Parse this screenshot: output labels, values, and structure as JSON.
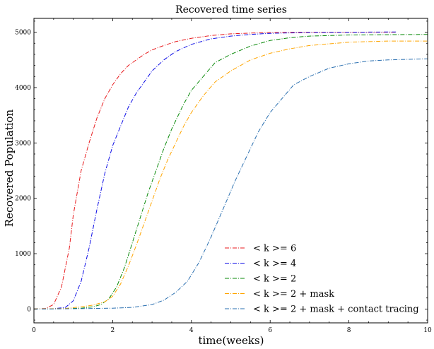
{
  "chart_data": {
    "type": "line",
    "title": "Recovered time series",
    "xlabel": "time(weeks)",
    "ylabel": "Recovered Population",
    "xlim": [
      0,
      10
    ],
    "ylim": [
      -250,
      5250
    ],
    "xticks": [
      0,
      2,
      4,
      6,
      8,
      10
    ],
    "yticks": [
      0,
      1000,
      2000,
      3000,
      4000,
      5000
    ],
    "xtick_labels": [
      "0",
      "2",
      "4",
      "6",
      "8",
      "10"
    ],
    "ytick_labels": [
      "0",
      "1000",
      "2000",
      "3000",
      "4000",
      "5000"
    ],
    "grid": false,
    "legend_position": "lower-right",
    "series": [
      {
        "name": "< k >= 6",
        "color": "#e8191c",
        "x": [
          0,
          0.3,
          0.5,
          0.7,
          0.9,
          1.0,
          1.2,
          1.4,
          1.6,
          1.8,
          2.0,
          2.2,
          2.4,
          2.6,
          2.8,
          3.0,
          3.3,
          3.6,
          4.0,
          4.5,
          5.0,
          5.5,
          6.0,
          7.0,
          8.0,
          9.2
        ],
        "y": [
          0,
          10,
          80,
          400,
          1100,
          1700,
          2500,
          3000,
          3450,
          3800,
          4050,
          4250,
          4400,
          4500,
          4600,
          4680,
          4760,
          4830,
          4890,
          4940,
          4970,
          4985,
          4995,
          5000,
          5000,
          5000
        ]
      },
      {
        "name": "< k >= 4",
        "color": "#0c0ce6",
        "x": [
          0,
          0.5,
          0.8,
          1.0,
          1.2,
          1.4,
          1.6,
          1.8,
          2.0,
          2.2,
          2.4,
          2.6,
          2.8,
          3.0,
          3.3,
          3.6,
          4.0,
          4.5,
          5.0,
          5.5,
          6.0,
          7.0,
          8.0,
          9.2
        ],
        "y": [
          0,
          5,
          30,
          150,
          500,
          1100,
          1800,
          2450,
          2950,
          3300,
          3650,
          3900,
          4100,
          4300,
          4500,
          4650,
          4780,
          4880,
          4930,
          4960,
          4980,
          4995,
          5000,
          5005
        ]
      },
      {
        "name": "< k >= 2",
        "color": "#0a8a0a",
        "x": [
          0,
          0.8,
          1.2,
          1.5,
          1.7,
          1.9,
          2.1,
          2.3,
          2.5,
          2.7,
          2.9,
          3.1,
          3.3,
          3.5,
          3.8,
          4.0,
          4.3,
          4.6,
          5.0,
          5.5,
          6.0,
          6.5,
          7.0,
          8.0,
          9.0,
          10.0
        ],
        "y": [
          0,
          5,
          15,
          40,
          80,
          180,
          400,
          750,
          1200,
          1650,
          2100,
          2500,
          2900,
          3250,
          3700,
          3950,
          4200,
          4450,
          4600,
          4750,
          4850,
          4900,
          4930,
          4950,
          4955,
          4960
        ]
      },
      {
        "name": "< k >= 2 + mask",
        "color": "#ffa500",
        "x": [
          0,
          0.8,
          1.2,
          1.5,
          1.8,
          2.0,
          2.2,
          2.4,
          2.6,
          2.8,
          3.0,
          3.2,
          3.4,
          3.6,
          3.8,
          4.0,
          4.3,
          4.6,
          5.0,
          5.5,
          6.0,
          6.5,
          7.0,
          8.0,
          9.0,
          10.0
        ],
        "y": [
          0,
          10,
          40,
          70,
          130,
          230,
          450,
          780,
          1150,
          1550,
          1950,
          2350,
          2700,
          3000,
          3300,
          3550,
          3850,
          4100,
          4300,
          4500,
          4620,
          4700,
          4760,
          4820,
          4840,
          4840
        ]
      },
      {
        "name": "< k >= 2 + mask + contact tracing",
        "color": "#2a6fb0",
        "x": [
          0,
          1.0,
          2.0,
          2.5,
          3.0,
          3.3,
          3.6,
          3.9,
          4.2,
          4.5,
          4.8,
          5.1,
          5.4,
          5.7,
          6.0,
          6.3,
          6.6,
          7.0,
          7.5,
          8.0,
          8.5,
          9.0,
          9.5,
          10.0
        ],
        "y": [
          0,
          5,
          15,
          30,
          80,
          160,
          300,
          500,
          850,
          1300,
          1800,
          2300,
          2750,
          3200,
          3550,
          3800,
          4050,
          4200,
          4350,
          4430,
          4480,
          4500,
          4510,
          4520
        ]
      }
    ]
  }
}
